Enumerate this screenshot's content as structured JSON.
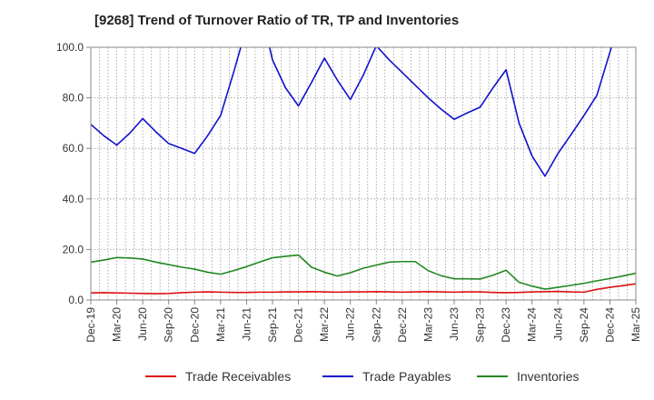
{
  "chart_data": {
    "type": "line",
    "title": "[9268]  Trend of Turnover Ratio of TR, TP and Inventories",
    "xlabel": "",
    "ylabel": "",
    "ylim": [
      0,
      100
    ],
    "y_ticks": [
      "0.0",
      "20.0",
      "40.0",
      "60.0",
      "80.0",
      "100.0"
    ],
    "x_ticks": [
      "Dec-19",
      "Mar-20",
      "Jun-20",
      "Sep-20",
      "Dec-20",
      "Mar-21",
      "Jun-21",
      "Sep-21",
      "Dec-21",
      "Mar-22",
      "Jun-22",
      "Sep-22",
      "Dec-22",
      "Mar-23",
      "Jun-23",
      "Sep-23",
      "Dec-23",
      "Mar-24",
      "Jun-24",
      "Sep-24",
      "Dec-24",
      "Mar-25"
    ],
    "grid": true,
    "legend": "bottom",
    "series": [
      {
        "name": "Trade Receivables",
        "color": "#dd1111",
        "points": [
          [
            0,
            2.8
          ],
          [
            1,
            2.9
          ],
          [
            2,
            2.8
          ],
          [
            3,
            2.7
          ],
          [
            4,
            2.6
          ],
          [
            5,
            2.5
          ],
          [
            6,
            2.6
          ],
          [
            7,
            2.9
          ],
          [
            8,
            3.1
          ],
          [
            9,
            3.2
          ],
          [
            10,
            3.1
          ],
          [
            11,
            3.0
          ],
          [
            12,
            3.0
          ],
          [
            13,
            3.1
          ],
          [
            14,
            3.1
          ],
          [
            15,
            3.2
          ],
          [
            16,
            3.2
          ],
          [
            17,
            3.3
          ],
          [
            18,
            3.2
          ],
          [
            19,
            3.1
          ],
          [
            20,
            3.2
          ],
          [
            21,
            3.2
          ],
          [
            22,
            3.3
          ],
          [
            23,
            3.2
          ],
          [
            24,
            3.1
          ],
          [
            25,
            3.2
          ],
          [
            26,
            3.3
          ],
          [
            27,
            3.2
          ],
          [
            28,
            3.1
          ],
          [
            29,
            3.2
          ],
          [
            30,
            3.2
          ],
          [
            31,
            3.0
          ],
          [
            32,
            2.9
          ],
          [
            33,
            3.0
          ],
          [
            34,
            3.2
          ],
          [
            35,
            3.3
          ],
          [
            36,
            3.4
          ],
          [
            37,
            3.2
          ],
          [
            38,
            3.1
          ],
          [
            39,
            4.2
          ],
          [
            40,
            5.0
          ],
          [
            41,
            5.7
          ],
          [
            42,
            6.4
          ],
          [
            43,
            7.0
          ],
          [
            44,
            7.9
          ],
          [
            45,
            8.3
          ],
          [
            46,
            8.5
          ]
        ]
      },
      {
        "name": "Trade Payables",
        "color": "#1111cc",
        "points": [
          [
            0,
            69.5
          ],
          [
            1,
            65.0
          ],
          [
            2,
            61.3
          ],
          [
            3,
            66.0
          ],
          [
            4,
            71.8
          ],
          [
            5,
            66.6
          ],
          [
            6,
            61.9
          ],
          [
            7,
            60.0
          ],
          [
            8,
            58.0
          ],
          [
            9,
            65.0
          ],
          [
            10,
            73.0
          ],
          [
            11,
            90.0
          ],
          [
            12,
            108.0
          ],
          [
            13,
            117.0
          ],
          [
            14,
            95.0
          ],
          [
            15,
            84.0
          ],
          [
            16,
            76.8
          ],
          [
            17,
            86.0
          ],
          [
            18,
            95.7
          ],
          [
            19,
            87.0
          ],
          [
            20,
            79.3
          ],
          [
            21,
            89.0
          ],
          [
            22,
            100.6
          ],
          [
            23,
            95.0
          ],
          [
            24,
            90.0
          ],
          [
            25,
            85.0
          ],
          [
            26,
            80.0
          ],
          [
            27,
            75.5
          ],
          [
            28,
            71.5
          ],
          [
            29,
            74.0
          ],
          [
            30,
            76.3
          ],
          [
            31,
            84.0
          ],
          [
            32,
            91.1
          ],
          [
            33,
            70.0
          ],
          [
            34,
            57.0
          ],
          [
            35,
            49.0
          ],
          [
            36,
            58.0
          ],
          [
            37,
            65.4
          ],
          [
            38,
            73.0
          ],
          [
            39,
            81.0
          ],
          [
            40,
            98.0
          ],
          [
            41,
            115.0
          ]
        ]
      },
      {
        "name": "Inventories",
        "color": "#228822",
        "points": [
          [
            0,
            15.0
          ],
          [
            1,
            15.8
          ],
          [
            2,
            16.8
          ],
          [
            3,
            16.6
          ],
          [
            4,
            16.2
          ],
          [
            5,
            15.0
          ],
          [
            6,
            14.0
          ],
          [
            7,
            13.0
          ],
          [
            8,
            12.2
          ],
          [
            9,
            11.0
          ],
          [
            10,
            10.2
          ],
          [
            11,
            11.6
          ],
          [
            12,
            13.2
          ],
          [
            13,
            15.0
          ],
          [
            14,
            16.7
          ],
          [
            15,
            17.3
          ],
          [
            16,
            17.8
          ],
          [
            17,
            13.0
          ],
          [
            18,
            11.0
          ],
          [
            19,
            9.5
          ],
          [
            20,
            10.8
          ],
          [
            21,
            12.6
          ],
          [
            22,
            13.8
          ],
          [
            23,
            15.0
          ],
          [
            24,
            15.2
          ],
          [
            25,
            15.2
          ],
          [
            26,
            11.6
          ],
          [
            27,
            9.6
          ],
          [
            28,
            8.4
          ],
          [
            29,
            8.4
          ],
          [
            30,
            8.3
          ],
          [
            31,
            9.8
          ],
          [
            32,
            11.8
          ],
          [
            33,
            7.0
          ],
          [
            34,
            5.5
          ],
          [
            35,
            4.3
          ],
          [
            36,
            5.0
          ],
          [
            37,
            5.8
          ],
          [
            38,
            6.6
          ],
          [
            39,
            7.6
          ],
          [
            40,
            8.5
          ],
          [
            41,
            9.5
          ],
          [
            42,
            10.6
          ],
          [
            43,
            9.3
          ],
          [
            44,
            8.6
          ]
        ]
      }
    ]
  }
}
